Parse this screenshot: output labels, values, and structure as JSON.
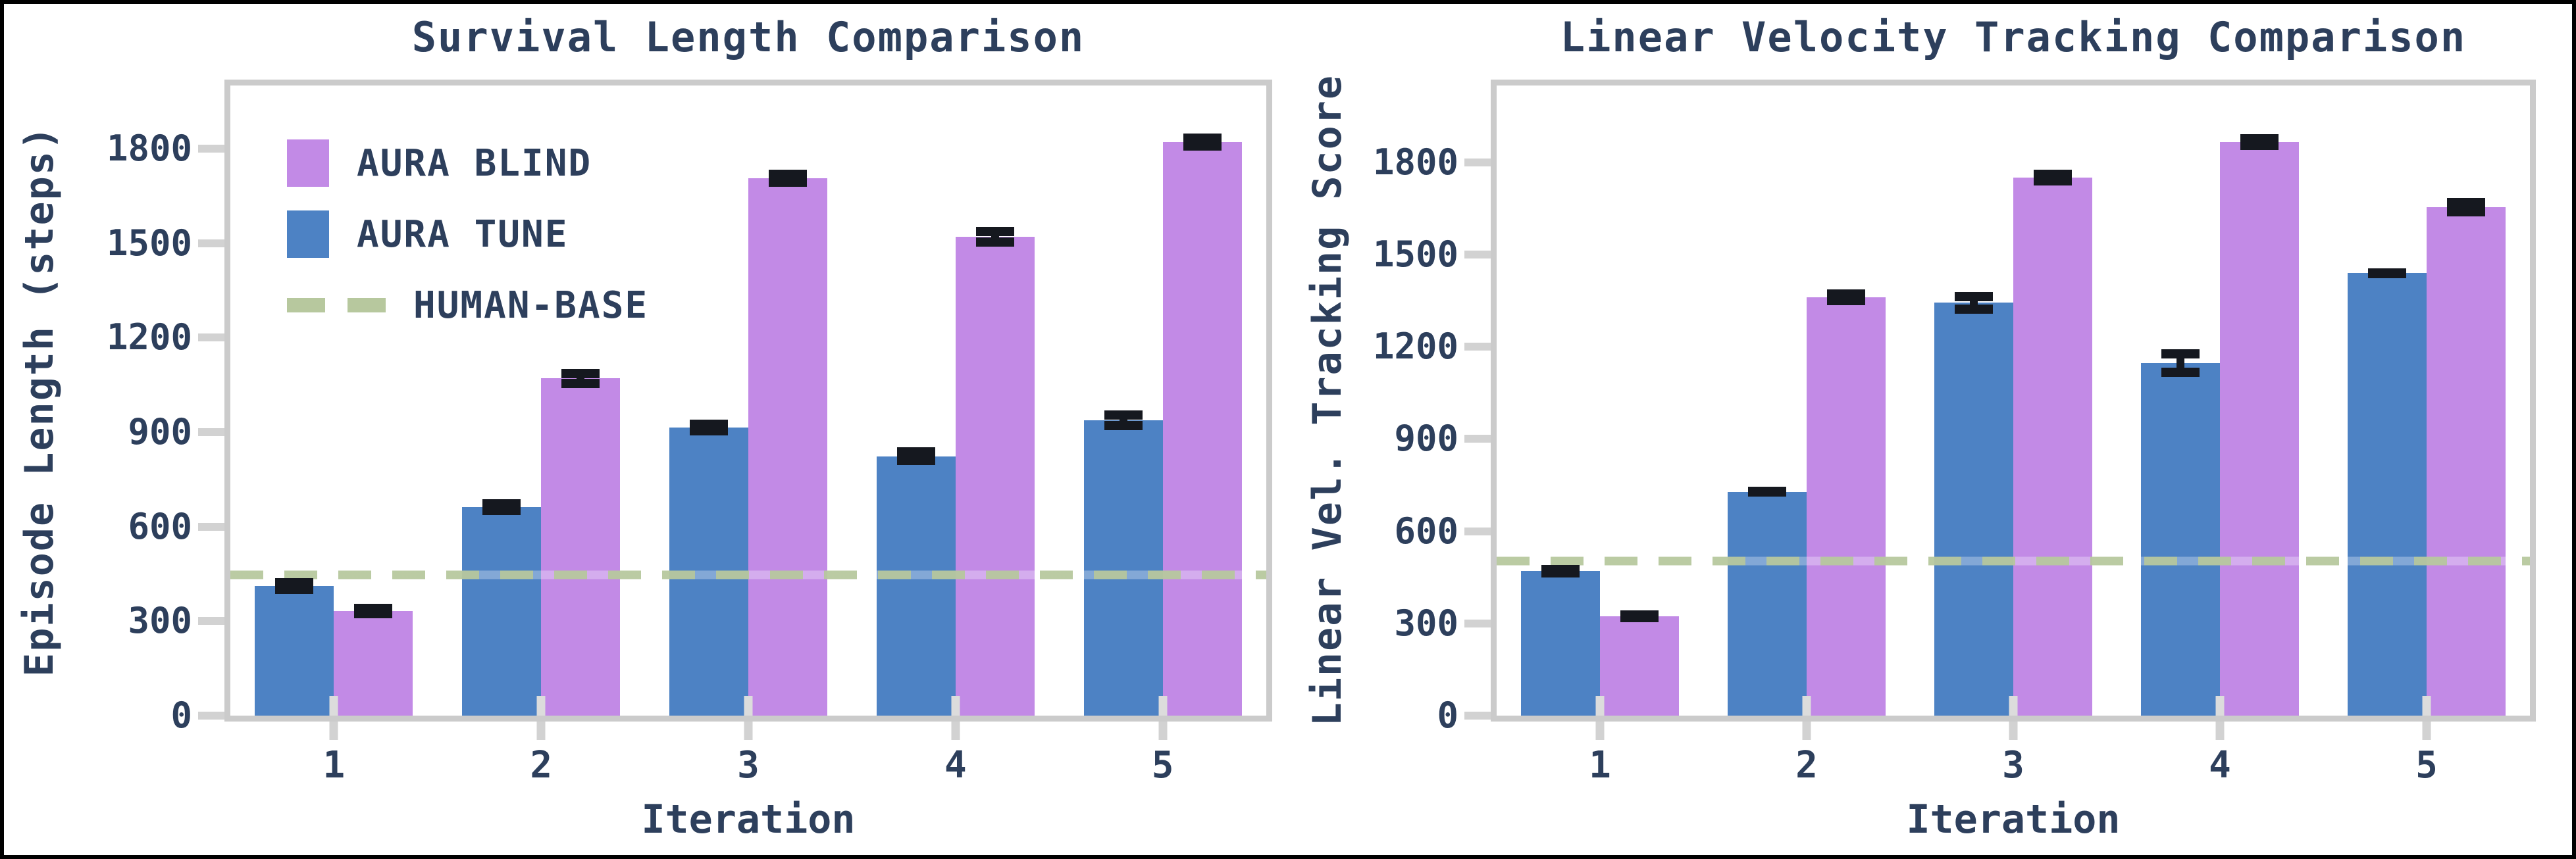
{
  "colors": {
    "blind": "#c28ae6",
    "tune": "#4d82c4",
    "baseline": "#b7c89e",
    "text": "#2d3f5c",
    "spine": "#cbcbcb",
    "tick": "#d2d2d2",
    "error": "#15181f"
  },
  "legend": {
    "items": [
      {
        "label": "AURA BLIND",
        "type": "patch",
        "color_key": "blind"
      },
      {
        "label": "AURA TUNE",
        "type": "patch",
        "color_key": "tune"
      },
      {
        "label": "HUMAN-BASE",
        "type": "dash",
        "color_key": "baseline"
      }
    ]
  },
  "chart_data": [
    {
      "type": "bar",
      "title": "Survival Length Comparison",
      "xlabel": "Iteration",
      "ylabel": "Episode Length (steps)",
      "categories": [
        "1",
        "2",
        "3",
        "4",
        "5"
      ],
      "yticks": [
        0,
        300,
        600,
        900,
        1200,
        1500,
        1800
      ],
      "ylim": [
        0,
        2000
      ],
      "grid": false,
      "legend_position": "upper-left",
      "series": [
        {
          "name": "AURA TUNE",
          "color_key": "tune",
          "values": [
            412,
            661,
            915,
            823,
            937
          ],
          "errors": [
            25,
            25,
            25,
            28,
            31
          ]
        },
        {
          "name": "AURA BLIND",
          "color_key": "blind",
          "values": [
            332,
            1070,
            1706,
            1520,
            1820
          ],
          "errors": [
            22,
            30,
            27,
            31,
            27
          ]
        }
      ],
      "baseline": {
        "name": "HUMAN-BASE",
        "value": 420
      }
    },
    {
      "type": "bar",
      "title": "Linear Velocity Tracking Comparison",
      "xlabel": "Iteration",
      "ylabel": "Linear Vel. Tracking Score",
      "categories": [
        "1",
        "2",
        "3",
        "4",
        "5"
      ],
      "yticks": [
        0,
        300,
        600,
        900,
        1200,
        1500,
        1800
      ],
      "ylim": [
        0,
        2050
      ],
      "grid": false,
      "legend_position": "none",
      "series": [
        {
          "name": "AURA TUNE",
          "color_key": "tune",
          "values": [
            470,
            728,
            1343,
            1148,
            1440
          ],
          "errors": [
            10,
            16,
            35,
            45,
            14
          ]
        },
        {
          "name": "AURA BLIND",
          "color_key": "blind",
          "values": [
            323,
            1361,
            1750,
            1866,
            1654
          ],
          "errors": [
            10,
            26,
            26,
            26,
            30
          ]
        }
      ],
      "baseline": {
        "name": "HUMAN-BASE",
        "value": 475
      }
    }
  ]
}
